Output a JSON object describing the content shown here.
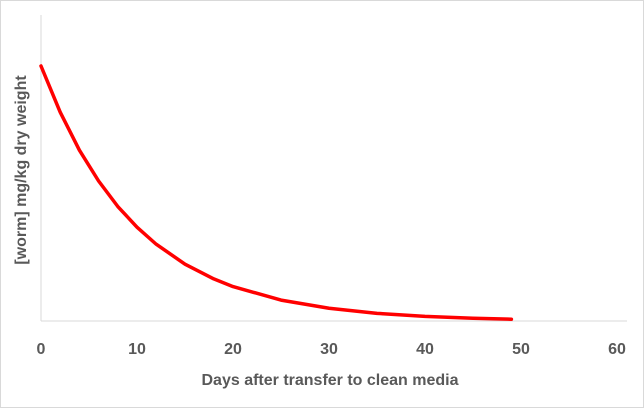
{
  "chart_data": {
    "type": "line",
    "x_label": "Days after transfer to clean media",
    "y_label": "[worm] mg/kg dry weight",
    "x": [
      0,
      2,
      4,
      6,
      8,
      10,
      12,
      15,
      18,
      20,
      25,
      30,
      35,
      40,
      45,
      49
    ],
    "series": [
      {
        "color": "#ff0000",
        "values": [
          100,
          81.9,
          67.0,
          54.9,
          44.9,
          36.8,
          30.1,
          22.3,
          16.5,
          13.5,
          8.2,
          5.0,
          3.0,
          1.8,
          1.1,
          0.7
        ]
      }
    ],
    "xlim": [
      0,
      60
    ],
    "xticks": [
      0,
      10,
      20,
      30,
      40,
      50,
      60
    ],
    "ylim": [
      0,
      120
    ]
  }
}
